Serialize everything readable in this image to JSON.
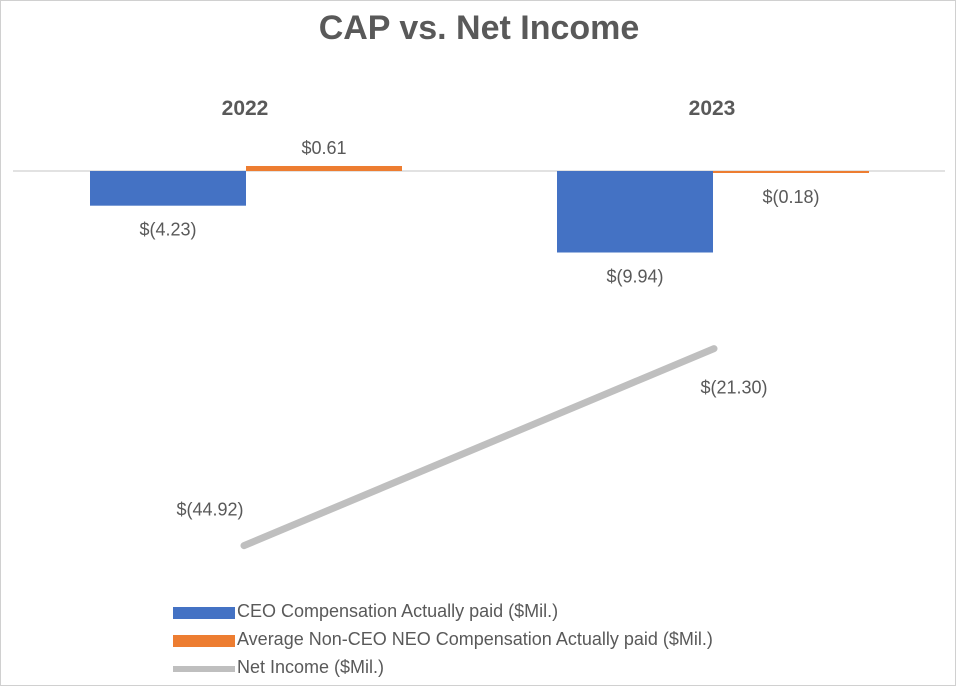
{
  "chart_data": {
    "type": "bar",
    "title": "CAP vs. Net Income",
    "categories": [
      "2022",
      "2023"
    ],
    "series": [
      {
        "name": "CEO Compensation Actually paid ($Mil.)",
        "kind": "bar",
        "color": "#4472C4",
        "values": [
          -4.23,
          -9.94
        ],
        "labels": [
          "$(4.23)",
          "$(9.94)"
        ]
      },
      {
        "name": "Average Non-CEO NEO Compensation Actually paid ($Mil.)",
        "kind": "bar",
        "color": "#ED7D31",
        "values": [
          0.61,
          -0.18
        ],
        "labels": [
          "$0.61",
          "$(0.18)"
        ]
      },
      {
        "name": "Net Income ($Mil.)",
        "kind": "line",
        "color": "#BFBFBF",
        "values": [
          -44.92,
          -21.3
        ],
        "labels": [
          "$(44.92)",
          "$(21.30)"
        ]
      }
    ],
    "xlabel": "",
    "ylabel": "",
    "ylim": [
      -48,
      2
    ],
    "grid": false,
    "legend_position": "bottom-left"
  }
}
